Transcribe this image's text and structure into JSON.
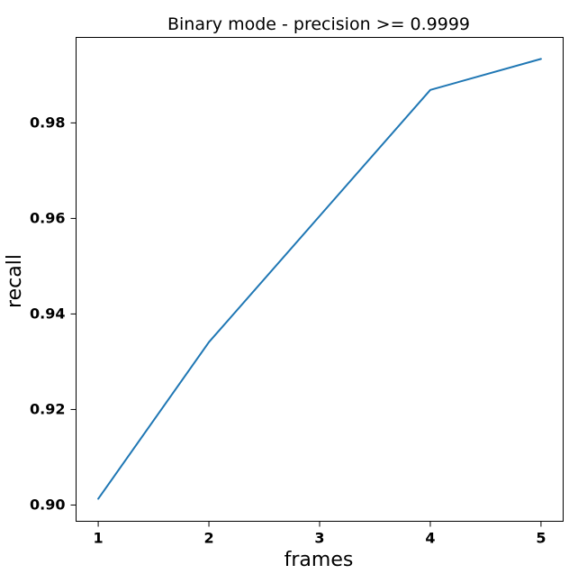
{
  "chart_data": {
    "type": "line",
    "title": "Binary mode - precision >= 0.9999",
    "xlabel": "frames",
    "ylabel": "recall",
    "x": [
      1,
      2,
      3,
      4,
      5
    ],
    "series": [
      {
        "color": "#1f77b4",
        "values": [
          0.9013,
          0.9341,
          0.9605,
          0.9869,
          0.9934
        ]
      }
    ],
    "xticks": [
      "1",
      "2",
      "3",
      "4",
      "5"
    ],
    "yticks": [
      "0.90",
      "0.92",
      "0.94",
      "0.96",
      "0.98"
    ],
    "xlim": [
      0.8,
      5.2
    ],
    "ylim": [
      0.8966,
      0.9979
    ],
    "grid": false
  }
}
